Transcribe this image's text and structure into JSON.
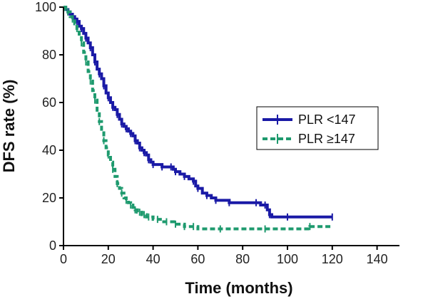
{
  "chart_data": {
    "type": "line",
    "title": "",
    "xlabel": "Time (months)",
    "ylabel": "DFS rate (%)",
    "xlim": [
      0,
      150
    ],
    "ylim": [
      0,
      100
    ],
    "xticks": [
      "0",
      "20",
      "40",
      "60",
      "80",
      "100",
      "120",
      "140"
    ],
    "yticks": [
      "0",
      "20",
      "40",
      "60",
      "80",
      "100"
    ],
    "grid": false,
    "legend": "right-center, boxed",
    "series": [
      {
        "name": "PLR <147",
        "color": "#1a1aa6",
        "style": "solid with tick marks",
        "points": [
          [
            0,
            100
          ],
          [
            1,
            99
          ],
          [
            2,
            98
          ],
          [
            3,
            97
          ],
          [
            4,
            96
          ],
          [
            5,
            95
          ],
          [
            6,
            94
          ],
          [
            7,
            92
          ],
          [
            8,
            91
          ],
          [
            9,
            89
          ],
          [
            10,
            87
          ],
          [
            11,
            85
          ],
          [
            12,
            83
          ],
          [
            13,
            80
          ],
          [
            14,
            77
          ],
          [
            15,
            74
          ],
          [
            16,
            72
          ],
          [
            17,
            70
          ],
          [
            18,
            67
          ],
          [
            19,
            64
          ],
          [
            20,
            62
          ],
          [
            21,
            60
          ],
          [
            22,
            58
          ],
          [
            23,
            57
          ],
          [
            24,
            55
          ],
          [
            25,
            53
          ],
          [
            26,
            51
          ],
          [
            27,
            50
          ],
          [
            28,
            49
          ],
          [
            29,
            48
          ],
          [
            30,
            47
          ],
          [
            31,
            46
          ],
          [
            32,
            44
          ],
          [
            33,
            43
          ],
          [
            34,
            41
          ],
          [
            35,
            40
          ],
          [
            36,
            39
          ],
          [
            37,
            38
          ],
          [
            38,
            36
          ],
          [
            39,
            35
          ],
          [
            40,
            34
          ],
          [
            42,
            34
          ],
          [
            44,
            33
          ],
          [
            46,
            33
          ],
          [
            48,
            33
          ],
          [
            49,
            32
          ],
          [
            50,
            31
          ],
          [
            52,
            30
          ],
          [
            54,
            29
          ],
          [
            56,
            28
          ],
          [
            58,
            27
          ],
          [
            59,
            25
          ],
          [
            60,
            24
          ],
          [
            62,
            22
          ],
          [
            64,
            21
          ],
          [
            66,
            20
          ],
          [
            68,
            19
          ],
          [
            72,
            19
          ],
          [
            74,
            18
          ],
          [
            80,
            18
          ],
          [
            86,
            18
          ],
          [
            88,
            17
          ],
          [
            90,
            17
          ],
          [
            91,
            15
          ],
          [
            92,
            13
          ],
          [
            93,
            12
          ],
          [
            100,
            12
          ],
          [
            110,
            12
          ],
          [
            120,
            12
          ]
        ]
      },
      {
        "name": "PLR ≥147",
        "color": "#1e9a6e",
        "style": "dashed with tick marks",
        "points": [
          [
            0,
            100
          ],
          [
            1,
            99
          ],
          [
            2,
            98
          ],
          [
            3,
            96
          ],
          [
            4,
            95
          ],
          [
            5,
            93
          ],
          [
            6,
            91
          ],
          [
            7,
            88
          ],
          [
            8,
            85
          ],
          [
            9,
            81
          ],
          [
            10,
            77
          ],
          [
            11,
            73
          ],
          [
            12,
            69
          ],
          [
            13,
            65
          ],
          [
            14,
            61
          ],
          [
            15,
            56
          ],
          [
            16,
            52
          ],
          [
            17,
            48
          ],
          [
            18,
            44
          ],
          [
            19,
            41
          ],
          [
            20,
            38
          ],
          [
            21,
            35
          ],
          [
            22,
            32
          ],
          [
            23,
            29
          ],
          [
            24,
            26
          ],
          [
            25,
            24
          ],
          [
            26,
            22
          ],
          [
            27,
            20
          ],
          [
            28,
            19
          ],
          [
            29,
            18
          ],
          [
            30,
            17
          ],
          [
            31,
            16
          ],
          [
            32,
            15
          ],
          [
            33,
            14
          ],
          [
            34,
            14
          ],
          [
            35,
            13
          ],
          [
            36,
            13
          ],
          [
            37,
            12
          ],
          [
            38,
            12
          ],
          [
            40,
            11
          ],
          [
            42,
            11
          ],
          [
            44,
            10
          ],
          [
            46,
            10
          ],
          [
            48,
            10
          ],
          [
            50,
            9
          ],
          [
            52,
            9
          ],
          [
            54,
            8
          ],
          [
            56,
            8
          ],
          [
            58,
            8
          ],
          [
            60,
            7
          ],
          [
            70,
            7
          ],
          [
            80,
            7
          ],
          [
            90,
            7
          ],
          [
            100,
            7
          ],
          [
            110,
            8
          ],
          [
            120,
            8
          ]
        ]
      }
    ]
  }
}
